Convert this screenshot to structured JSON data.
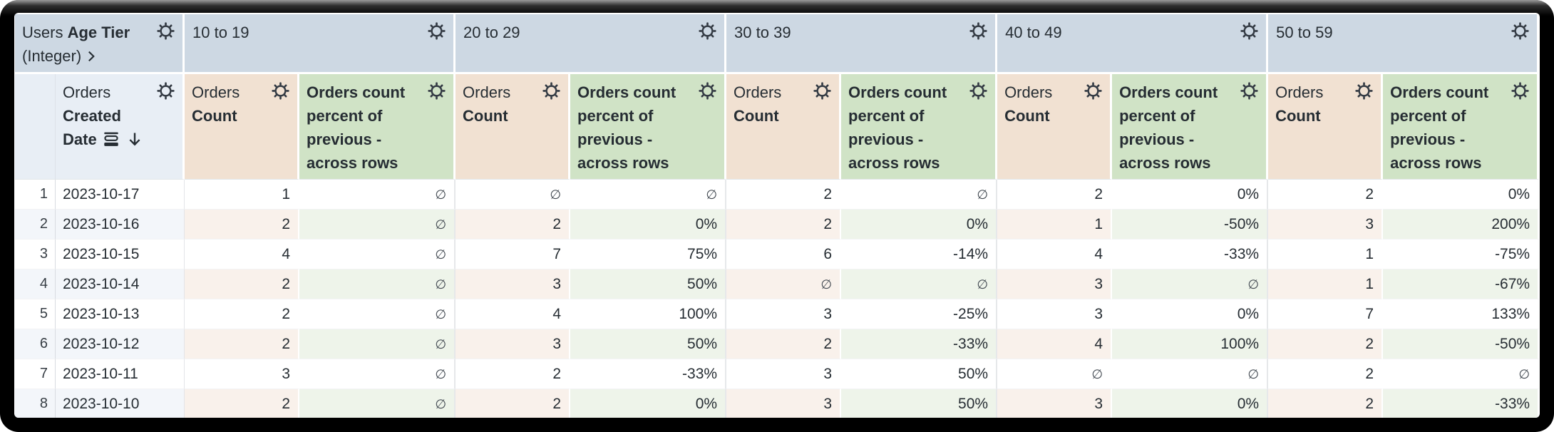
{
  "theme": {
    "text": "#262d33",
    "frame_bg": "#000000",
    "pivot_header_bg": "#cdd8e3",
    "dim_header_bg": "#e8eef5",
    "count_header_bg": "#f1e1d2",
    "pct_header_bg": "#d0e3c6",
    "row_tint_dim": "#f3f6fa",
    "row_tint_count": "#f9f1eb",
    "row_tint_pct": "#eef4ea"
  },
  "icons": {
    "header_menu": "gear-icon",
    "corner_expand": "chevron-right-icon",
    "date_granularity": "calendar-rows-icon",
    "sort_direction": "arrow-down-icon"
  },
  "table": {
    "null_symbol": "∅",
    "corner": {
      "view": "Users",
      "field": "Age Tier",
      "type_suffix": "(Integer)"
    },
    "pivot_values": [
      "10 to 19",
      "20 to 29",
      "30 to 39",
      "40 to 49",
      "50 to 59"
    ],
    "date_header": {
      "view": "Orders",
      "field_word1": "Created",
      "field_word2": "Date"
    },
    "count_measure": {
      "view": "Orders",
      "field": "Count"
    },
    "pct_measure": {
      "label": "Orders count percent of previous - across rows"
    },
    "rows": [
      {
        "num": "1",
        "date": "2023-10-17",
        "values": [
          "1",
          "∅",
          "∅",
          "∅",
          "2",
          "∅",
          "2",
          "0%",
          "2",
          "0%"
        ]
      },
      {
        "num": "2",
        "date": "2023-10-16",
        "values": [
          "2",
          "∅",
          "2",
          "0%",
          "2",
          "0%",
          "1",
          "-50%",
          "3",
          "200%"
        ]
      },
      {
        "num": "3",
        "date": "2023-10-15",
        "values": [
          "4",
          "∅",
          "7",
          "75%",
          "6",
          "-14%",
          "4",
          "-33%",
          "1",
          "-75%"
        ]
      },
      {
        "num": "4",
        "date": "2023-10-14",
        "values": [
          "2",
          "∅",
          "3",
          "50%",
          "∅",
          "∅",
          "3",
          "∅",
          "1",
          "-67%"
        ]
      },
      {
        "num": "5",
        "date": "2023-10-13",
        "values": [
          "2",
          "∅",
          "4",
          "100%",
          "3",
          "-25%",
          "3",
          "0%",
          "7",
          "133%"
        ]
      },
      {
        "num": "6",
        "date": "2023-10-12",
        "values": [
          "2",
          "∅",
          "3",
          "50%",
          "2",
          "-33%",
          "4",
          "100%",
          "2",
          "-50%"
        ]
      },
      {
        "num": "7",
        "date": "2023-10-11",
        "values": [
          "3",
          "∅",
          "2",
          "-33%",
          "3",
          "50%",
          "∅",
          "∅",
          "2",
          "∅"
        ]
      },
      {
        "num": "8",
        "date": "2023-10-10",
        "values": [
          "2",
          "∅",
          "2",
          "0%",
          "3",
          "50%",
          "3",
          "0%",
          "2",
          "-33%"
        ]
      }
    ]
  }
}
